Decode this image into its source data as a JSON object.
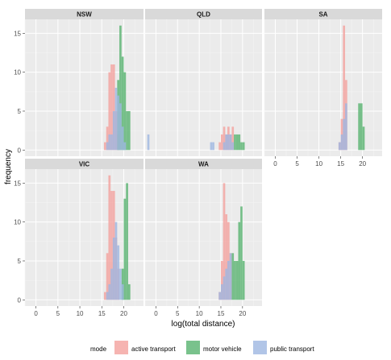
{
  "chart_data": {
    "type": "histogram",
    "facets": [
      {
        "name": "NSW",
        "series": [
          {
            "mode": "active transport",
            "bins": [
              [
                15.5,
                16.0,
                1
              ],
              [
                16.0,
                16.5,
                3
              ],
              [
                16.5,
                17.0,
                10
              ],
              [
                17.0,
                17.5,
                11
              ],
              [
                17.5,
                18.0,
                11
              ],
              [
                18.0,
                18.5,
                5
              ],
              [
                18.5,
                19.0,
                2
              ]
            ]
          },
          {
            "mode": "motor vehicle",
            "bins": [
              [
                18.5,
                19.0,
                9
              ],
              [
                19.0,
                19.5,
                16
              ],
              [
                19.5,
                20.0,
                12
              ],
              [
                20.0,
                20.5,
                10
              ],
              [
                20.5,
                21.0,
                5
              ],
              [
                21.0,
                21.5,
                5
              ]
            ]
          },
          {
            "mode": "public transport",
            "bins": [
              [
                16.0,
                16.5,
                1
              ],
              [
                16.5,
                17.0,
                2
              ],
              [
                17.0,
                17.5,
                2
              ],
              [
                17.5,
                18.0,
                5
              ],
              [
                18.0,
                18.5,
                8
              ],
              [
                18.5,
                19.0,
                7
              ],
              [
                19.0,
                19.5,
                6
              ],
              [
                19.5,
                20.0,
                3
              ],
              [
                20.0,
                20.5,
                1
              ]
            ]
          }
        ]
      },
      {
        "name": "QLD",
        "series": [
          {
            "mode": "active transport",
            "bins": [
              [
                14.5,
                15.0,
                1
              ],
              [
                15.0,
                15.5,
                2
              ],
              [
                15.5,
                16.0,
                3
              ],
              [
                16.0,
                16.5,
                2
              ],
              [
                16.5,
                17.0,
                3
              ],
              [
                17.0,
                17.5,
                2
              ],
              [
                17.5,
                18.0,
                3
              ]
            ]
          },
          {
            "mode": "motor vehicle",
            "bins": [
              [
                18.0,
                18.5,
                2
              ],
              [
                18.5,
                19.0,
                2
              ],
              [
                19.0,
                19.5,
                2
              ],
              [
                19.5,
                20.0,
                1
              ],
              [
                20.0,
                20.5,
                1
              ]
            ]
          },
          {
            "mode": "public transport",
            "bins": [
              [
                -2.0,
                -1.5,
                2
              ],
              [
                12.5,
                13.0,
                1
              ],
              [
                13.0,
                13.5,
                1
              ],
              [
                15.5,
                16.0,
                1
              ],
              [
                16.0,
                16.5,
                2
              ],
              [
                16.5,
                17.0,
                2
              ],
              [
                17.0,
                17.5,
                2
              ],
              [
                17.5,
                18.0,
                1
              ]
            ]
          }
        ]
      },
      {
        "name": "SA",
        "series": [
          {
            "mode": "active transport",
            "bins": [
              [
                14.5,
                15.0,
                1
              ],
              [
                15.0,
                15.5,
                4
              ],
              [
                15.5,
                16.0,
                16
              ],
              [
                16.0,
                16.5,
                9
              ]
            ]
          },
          {
            "mode": "motor vehicle",
            "bins": [
              [
                19.0,
                19.5,
                6
              ],
              [
                19.5,
                20.0,
                6
              ],
              [
                20.0,
                20.5,
                3
              ]
            ]
          },
          {
            "mode": "public transport",
            "bins": [
              [
                14.5,
                15.0,
                1
              ],
              [
                15.0,
                15.5,
                2
              ],
              [
                15.5,
                16.0,
                4
              ],
              [
                16.0,
                16.5,
                6
              ]
            ]
          }
        ]
      },
      {
        "name": "VIC",
        "series": [
          {
            "mode": "active transport",
            "bins": [
              [
                15.5,
                16.0,
                1
              ],
              [
                16.0,
                16.5,
                6
              ],
              [
                16.5,
                17.0,
                16
              ],
              [
                17.0,
                17.5,
                14
              ],
              [
                17.5,
                18.0,
                14
              ],
              [
                18.0,
                18.5,
                8
              ],
              [
                18.5,
                19.0,
                4
              ]
            ]
          },
          {
            "mode": "motor vehicle",
            "bins": [
              [
                19.5,
                20.0,
                4
              ],
              [
                20.0,
                20.5,
                13
              ],
              [
                20.5,
                21.0,
                15
              ],
              [
                21.0,
                21.5,
                2
              ]
            ]
          },
          {
            "mode": "public transport",
            "bins": [
              [
                16.0,
                16.5,
                1
              ],
              [
                16.5,
                17.0,
                2
              ],
              [
                17.0,
                17.5,
                4
              ],
              [
                17.5,
                18.0,
                8
              ],
              [
                18.0,
                18.5,
                10
              ],
              [
                18.5,
                19.0,
                7
              ],
              [
                19.0,
                19.5,
                4
              ],
              [
                19.5,
                20.0,
                2
              ]
            ]
          }
        ]
      },
      {
        "name": "WA",
        "series": [
          {
            "mode": "active transport",
            "bins": [
              [
                14.5,
                15.0,
                1
              ],
              [
                15.0,
                15.5,
                5
              ],
              [
                15.5,
                16.0,
                15
              ],
              [
                16.0,
                16.5,
                11
              ],
              [
                16.5,
                17.0,
                10
              ],
              [
                17.0,
                17.5,
                6
              ]
            ]
          },
          {
            "mode": "motor vehicle",
            "bins": [
              [
                17.5,
                18.0,
                6
              ],
              [
                18.0,
                18.5,
                5
              ],
              [
                18.5,
                19.0,
                5
              ],
              [
                19.0,
                19.5,
                10
              ],
              [
                19.5,
                20.0,
                12
              ],
              [
                20.0,
                20.5,
                5
              ]
            ]
          },
          {
            "mode": "public transport",
            "bins": [
              [
                14.5,
                15.0,
                1
              ],
              [
                15.0,
                15.5,
                2
              ],
              [
                15.5,
                16.0,
                3
              ],
              [
                16.0,
                16.5,
                4
              ],
              [
                16.5,
                17.0,
                5
              ],
              [
                17.0,
                17.5,
                6
              ]
            ]
          }
        ]
      }
    ],
    "xlabel": "log(total distance)",
    "ylabel": "frequency",
    "xlim": [
      -2.5,
      24.5
    ],
    "ylim": [
      -0.8,
      16.8
    ],
    "xticks": [
      0,
      5,
      10,
      15,
      20
    ],
    "yticks": [
      0,
      5,
      10,
      15
    ],
    "grid": true,
    "legend": {
      "title": "mode",
      "position": "bottom",
      "entries": [
        {
          "label": "active transport",
          "color": "#f4a19d"
        },
        {
          "label": "motor vehicle",
          "color": "#58b36f"
        },
        {
          "label": "public transport",
          "color": "#9db7e1"
        }
      ]
    }
  }
}
